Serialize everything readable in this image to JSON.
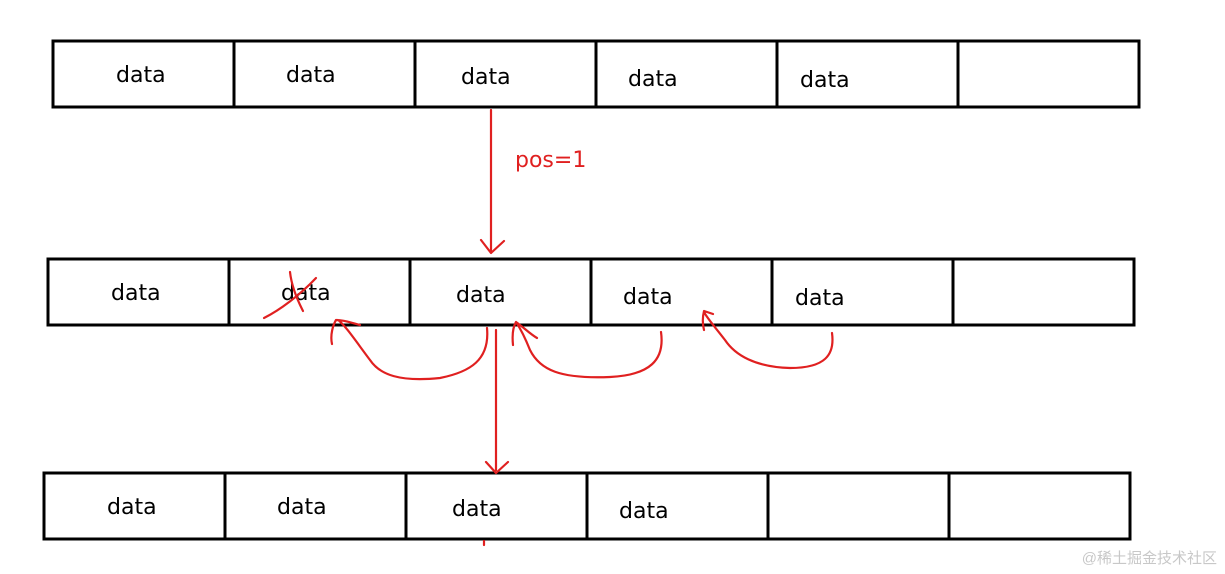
{
  "arrays": [
    {
      "name": "array-before",
      "cells": [
        "data",
        "data",
        "data",
        "data",
        "data",
        ""
      ]
    },
    {
      "name": "array-shifting",
      "cells": [
        "data",
        "data",
        "data",
        "data",
        "data",
        ""
      ],
      "removed_index": 1
    },
    {
      "name": "array-after",
      "cells": [
        "data",
        "data",
        "data",
        "data",
        "",
        ""
      ]
    }
  ],
  "annotation": {
    "label": "pos=1"
  },
  "colors": {
    "annotation": "#e02020",
    "border": "#000000"
  },
  "watermark": "@稀土掘金技术社区"
}
